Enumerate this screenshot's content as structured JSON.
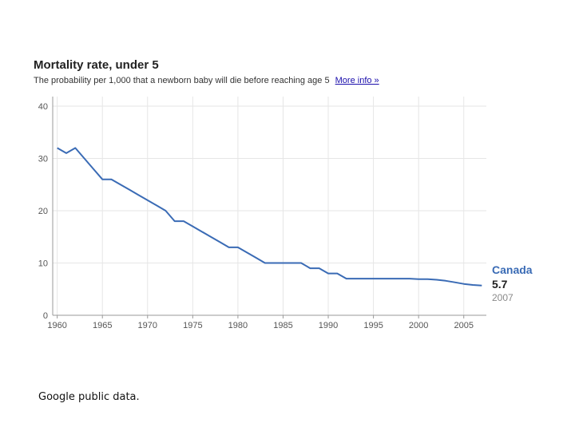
{
  "title": "Mortality rate, under 5",
  "subtitle": "The probability per 1,000 that a newborn baby will die before reaching age 5",
  "more_info_label": "More info »",
  "source_note": "Google public data.",
  "colors": {
    "line": "#3a6bb5",
    "grid": "#e6e6e6",
    "axis": "#999999",
    "label_value": "#1f1f1f",
    "label_year": "#8a8a8a"
  },
  "chart_data": {
    "type": "line",
    "title": "Mortality rate, under 5",
    "subtitle": "The probability per 1,000 that a newborn baby will die before reaching age 5",
    "xlim": [
      1959.5,
      2007.5
    ],
    "ylim": [
      0,
      40
    ],
    "yticks": [
      0,
      10,
      20,
      30,
      40
    ],
    "ytick_labels": [
      "0",
      "10",
      "20",
      "30",
      "40"
    ],
    "xticks": [
      1960,
      1965,
      1970,
      1975,
      1980,
      1985,
      1990,
      1995,
      2000,
      2005
    ],
    "xtick_labels": [
      "1960",
      "1965",
      "1970",
      "1975",
      "1980",
      "1985",
      "1990",
      "1995",
      "2000",
      "2005"
    ],
    "grid": true,
    "series": [
      {
        "name": "Canada",
        "x": [
          1960,
          1961,
          1962,
          1963,
          1964,
          1965,
          1966,
          1967,
          1968,
          1969,
          1970,
          1971,
          1972,
          1973,
          1974,
          1975,
          1976,
          1977,
          1978,
          1979,
          1980,
          1981,
          1982,
          1983,
          1984,
          1985,
          1986,
          1987,
          1988,
          1989,
          1990,
          1991,
          1992,
          1993,
          1994,
          1995,
          1996,
          1997,
          1998,
          1999,
          2000,
          2001,
          2002,
          2003,
          2004,
          2005,
          2006,
          2007
        ],
        "y": [
          32,
          31,
          32,
          30,
          28,
          26,
          26,
          25,
          24,
          23,
          22,
          21,
          20,
          18,
          18,
          17,
          16,
          15,
          14,
          13,
          13,
          12,
          11,
          10,
          10,
          10,
          10,
          10,
          9,
          9,
          8,
          8,
          7,
          7,
          7,
          7,
          7,
          7,
          7,
          7,
          6.9,
          6.9,
          6.8,
          6.6,
          6.3,
          6.0,
          5.8,
          5.7
        ]
      }
    ],
    "end_label": {
      "name": "Canada",
      "value": "5.7",
      "year": "2007"
    }
  }
}
